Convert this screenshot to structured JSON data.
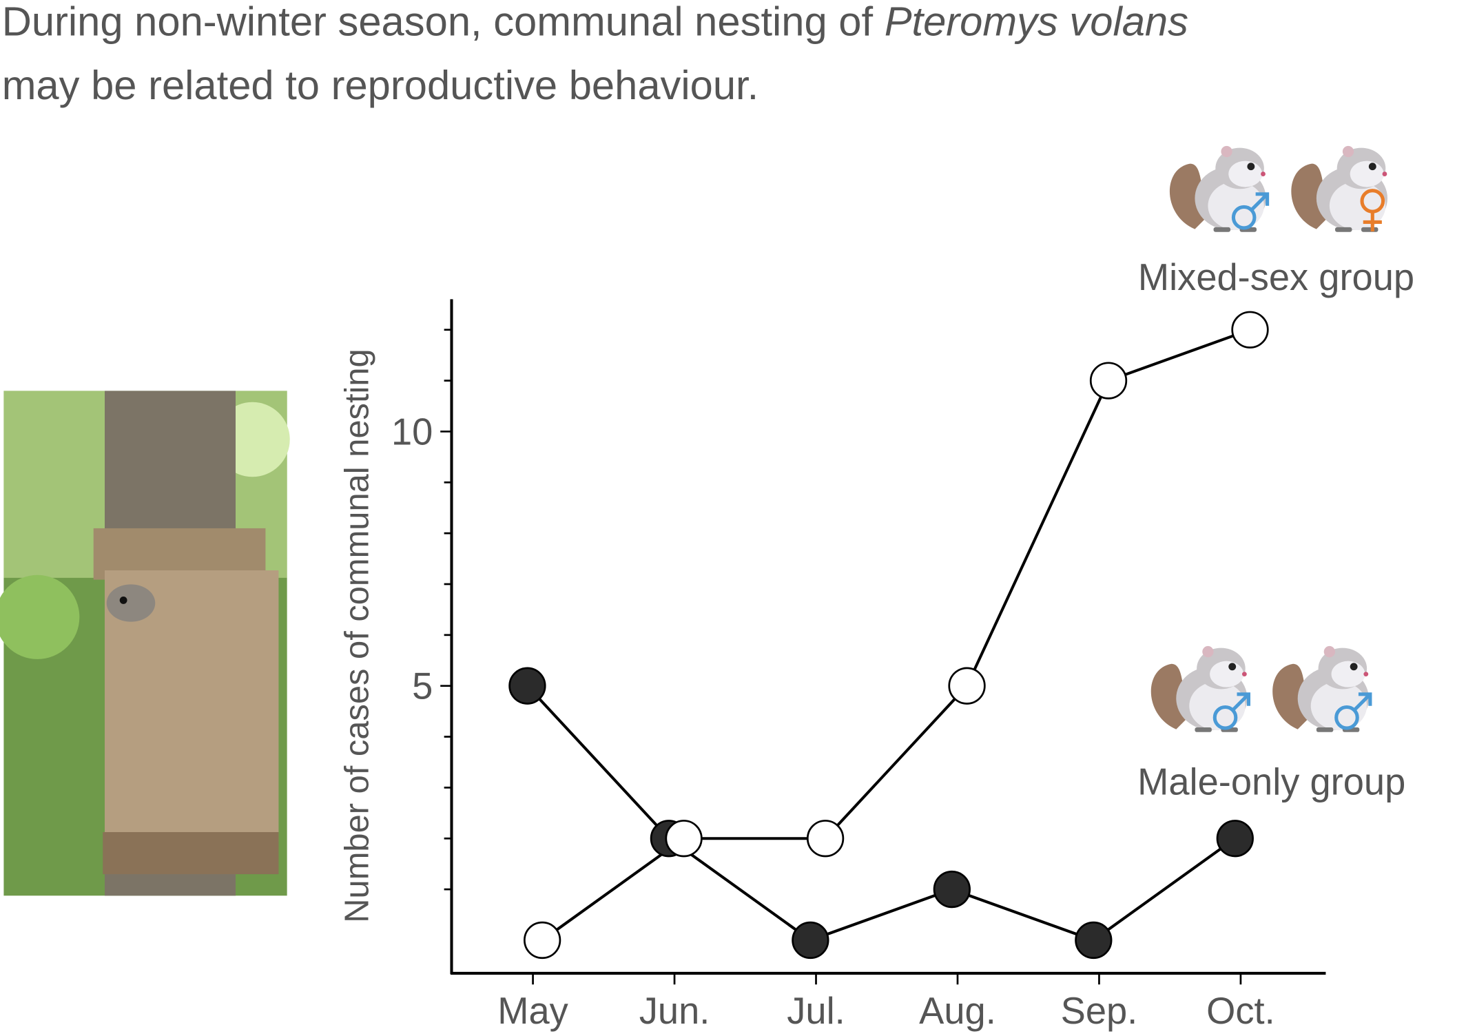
{
  "chart_data": {
    "type": "line",
    "title_segments": [
      "During non-winter season, communal nesting of",
      "Pteromys volans",
      "may be related to reproductive behaviour."
    ],
    "y_label": "Number of cases of communal nesting",
    "categories": [
      "May",
      "Jun.",
      "Jul.",
      "Aug.",
      "Sep.",
      "Oct."
    ],
    "series": [
      {
        "name": "Male-only group",
        "color": "#2b2b2b",
        "values": [
          5,
          2,
          0,
          1,
          0,
          2
        ]
      },
      {
        "name": "Mixed-sex group",
        "color": "#ffffff",
        "values": [
          0,
          2,
          2,
          5,
          11,
          12
        ]
      }
    ],
    "ylim": [
      -0.65,
      12.6
    ],
    "yticks": [
      5,
      10
    ],
    "minor_yticks": [
      1,
      2,
      3,
      4,
      6,
      7,
      8,
      9,
      11,
      12
    ],
    "line_color": "#000000"
  }
}
